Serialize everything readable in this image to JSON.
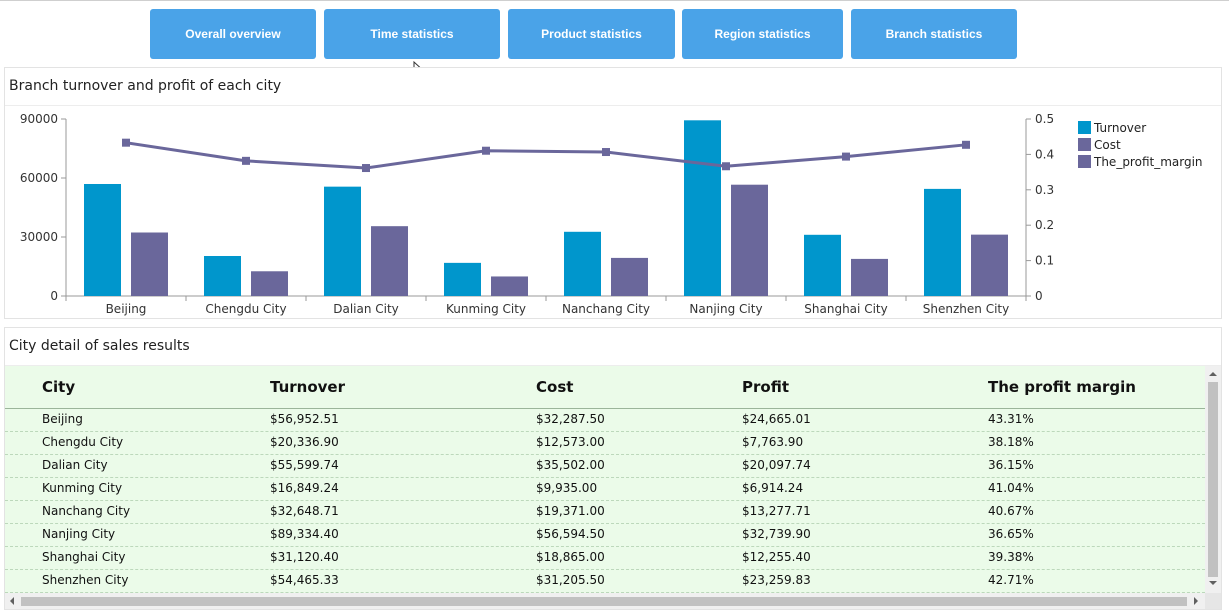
{
  "nav": {
    "buttons": [
      "Overall overview",
      "Time statistics",
      "Product statistics",
      "Region statistics",
      "Branch statistics"
    ]
  },
  "chart_panel": {
    "title": "Branch turnover and profit of each city"
  },
  "chart_data": {
    "type": "bar",
    "categories": [
      "Beijing",
      "Chengdu City",
      "Dalian City",
      "Kunming City",
      "Nanchang City",
      "Nanjing City",
      "Shanghai City",
      "Shenzhen City"
    ],
    "series": [
      {
        "name": "Turnover",
        "type": "bar",
        "axis": "left",
        "color": "#0096cc",
        "values": [
          56952.51,
          20336.9,
          55599.74,
          16849.24,
          32648.71,
          89334.4,
          31120.4,
          54465.33
        ]
      },
      {
        "name": "Cost",
        "type": "bar",
        "axis": "left",
        "color": "#6a679b",
        "values": [
          32287.5,
          12573.0,
          35502.0,
          9935.0,
          19371.0,
          56594.5,
          18865.0,
          31205.5
        ]
      },
      {
        "name": "The_profit_margin",
        "type": "line",
        "axis": "right",
        "color": "#6a679b",
        "values": [
          0.4331,
          0.3818,
          0.3615,
          0.4104,
          0.4067,
          0.3665,
          0.3938,
          0.4271
        ]
      }
    ],
    "y_left": {
      "ylim": [
        0,
        90000
      ],
      "ticks": [
        "0",
        "30000",
        "60000",
        "90000"
      ]
    },
    "y_right": {
      "ylim": [
        0,
        0.5
      ],
      "ticks": [
        "0",
        "0.1",
        "0.2",
        "0.3",
        "0.4",
        "0.5"
      ]
    },
    "legend_position": "right",
    "grid": false
  },
  "table_panel": {
    "title": "City detail of  sales results",
    "columns": [
      "City",
      "Turnover",
      "Cost",
      "Profit",
      "The profit margin"
    ],
    "rows": [
      [
        "Beijing",
        "$56,952.51",
        "$32,287.50",
        "$24,665.01",
        "43.31%"
      ],
      [
        "Chengdu City",
        "$20,336.90",
        "$12,573.00",
        "$7,763.90",
        "38.18%"
      ],
      [
        "Dalian City",
        "$55,599.74",
        "$35,502.00",
        "$20,097.74",
        "36.15%"
      ],
      [
        "Kunming City",
        "$16,849.24",
        "$9,935.00",
        "$6,914.24",
        "41.04%"
      ],
      [
        "Nanchang City",
        "$32,648.71",
        "$19,371.00",
        "$13,277.71",
        "40.67%"
      ],
      [
        "Nanjing City",
        "$89,334.40",
        "$56,594.50",
        "$32,739.90",
        "36.65%"
      ],
      [
        "Shanghai City",
        "$31,120.40",
        "$18,865.00",
        "$12,255.40",
        "39.38%"
      ],
      [
        "Shenzhen City",
        "$54,465.33",
        "$31,205.50",
        "$23,259.83",
        "42.71%"
      ]
    ]
  },
  "colors": {
    "nav_button": "#4aa3e8",
    "table_bg": "#ebfbe9"
  }
}
